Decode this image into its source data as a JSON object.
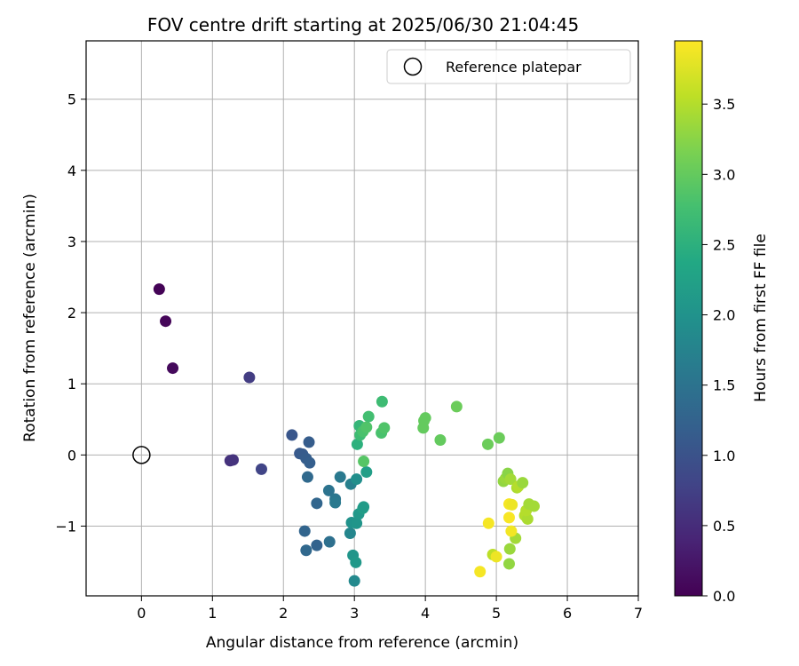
{
  "chart_data": {
    "type": "scatter",
    "title": "FOV centre drift starting at 2025/06/30 21:04:45",
    "xlabel": "Angular distance from reference (arcmin)",
    "ylabel": "Rotation from reference (arcmin)",
    "xlim": [
      -0.78,
      7.0
    ],
    "ylim": [
      -1.98,
      5.82
    ],
    "x_ticks": [
      0,
      1,
      2,
      3,
      4,
      5,
      6,
      7
    ],
    "y_ticks": [
      -1,
      0,
      1,
      2,
      3,
      4,
      5
    ],
    "x_tick_labels": [
      "0",
      "1",
      "2",
      "3",
      "4",
      "5",
      "6",
      "7"
    ],
    "y_tick_labels": [
      "−1",
      "0",
      "1",
      "2",
      "3",
      "4",
      "5"
    ],
    "grid": true,
    "legend_placement": "top-right",
    "legend_entries": [
      "Reference platepar"
    ],
    "reference_point": {
      "x": 0,
      "y": 0
    },
    "colorbar": {
      "label": "Hours from first FF file",
      "colormap": "viridis",
      "range": [
        0.0,
        3.95
      ],
      "ticks": [
        0.0,
        0.5,
        1.0,
        1.5,
        2.0,
        2.5,
        3.0,
        3.5
      ],
      "tick_labels": [
        "0.0",
        "0.5",
        "1.0",
        "1.5",
        "2.0",
        "2.5",
        "3.0",
        "3.5"
      ]
    },
    "points": [
      {
        "x": 0.25,
        "y": 2.33,
        "c": 0.02
      },
      {
        "x": 0.34,
        "y": 1.88,
        "c": 0.06
      },
      {
        "x": 0.44,
        "y": 1.22,
        "c": 0.1
      },
      {
        "x": 1.25,
        "y": -0.08,
        "c": 0.55
      },
      {
        "x": 1.29,
        "y": -0.07,
        "c": 0.58
      },
      {
        "x": 1.52,
        "y": 1.09,
        "c": 0.7
      },
      {
        "x": 1.69,
        "y": -0.2,
        "c": 0.8
      },
      {
        "x": 2.12,
        "y": 0.28,
        "c": 1.05
      },
      {
        "x": 2.23,
        "y": 0.02,
        "c": 1.1
      },
      {
        "x": 2.27,
        "y": 0.01,
        "c": 1.12
      },
      {
        "x": 2.32,
        "y": -0.05,
        "c": 1.15
      },
      {
        "x": 2.36,
        "y": 0.18,
        "c": 1.15
      },
      {
        "x": 2.37,
        "y": -0.11,
        "c": 1.18
      },
      {
        "x": 2.34,
        "y": -0.31,
        "c": 1.35
      },
      {
        "x": 2.47,
        "y": -0.68,
        "c": 1.3
      },
      {
        "x": 2.3,
        "y": -1.07,
        "c": 1.28
      },
      {
        "x": 2.32,
        "y": -1.34,
        "c": 1.32
      },
      {
        "x": 2.47,
        "y": -1.27,
        "c": 1.25
      },
      {
        "x": 2.65,
        "y": -1.22,
        "c": 1.45
      },
      {
        "x": 2.64,
        "y": -0.5,
        "c": 1.5
      },
      {
        "x": 2.73,
        "y": -0.62,
        "c": 1.55
      },
      {
        "x": 2.73,
        "y": -0.67,
        "c": 1.6
      },
      {
        "x": 2.8,
        "y": -0.31,
        "c": 1.6
      },
      {
        "x": 2.95,
        "y": -0.41,
        "c": 1.7
      },
      {
        "x": 3.03,
        "y": -0.34,
        "c": 1.95
      },
      {
        "x": 2.94,
        "y": -1.1,
        "c": 1.8
      },
      {
        "x": 2.96,
        "y": -0.95,
        "c": 2.0
      },
      {
        "x": 3.03,
        "y": -0.96,
        "c": 2.05
      },
      {
        "x": 3.06,
        "y": -0.83,
        "c": 2.1
      },
      {
        "x": 3.12,
        "y": -0.75,
        "c": 2.2
      },
      {
        "x": 3.13,
        "y": -0.73,
        "c": 2.15
      },
      {
        "x": 3.17,
        "y": -0.24,
        "c": 2.2
      },
      {
        "x": 2.98,
        "y": -1.41,
        "c": 2.05
      },
      {
        "x": 3.02,
        "y": -1.51,
        "c": 2.1
      },
      {
        "x": 3.0,
        "y": -1.77,
        "c": 1.85
      },
      {
        "x": 3.04,
        "y": 0.15,
        "c": 2.5
      },
      {
        "x": 3.07,
        "y": 0.41,
        "c": 2.6
      },
      {
        "x": 3.08,
        "y": 0.28,
        "c": 2.7
      },
      {
        "x": 3.12,
        "y": 0.33,
        "c": 2.8
      },
      {
        "x": 3.17,
        "y": 0.39,
        "c": 2.85
      },
      {
        "x": 3.2,
        "y": 0.54,
        "c": 2.75
      },
      {
        "x": 3.13,
        "y": -0.09,
        "c": 2.9
      },
      {
        "x": 3.38,
        "y": 0.31,
        "c": 2.8
      },
      {
        "x": 3.42,
        "y": 0.38,
        "c": 2.85
      },
      {
        "x": 3.39,
        "y": 0.75,
        "c": 2.7
      },
      {
        "x": 3.97,
        "y": 0.38,
        "c": 3.0
      },
      {
        "x": 3.98,
        "y": 0.48,
        "c": 3.0
      },
      {
        "x": 4.0,
        "y": 0.52,
        "c": 3.0
      },
      {
        "x": 4.21,
        "y": 0.21,
        "c": 3.0
      },
      {
        "x": 4.44,
        "y": 0.68,
        "c": 3.05
      },
      {
        "x": 4.88,
        "y": 0.15,
        "c": 3.05
      },
      {
        "x": 5.04,
        "y": 0.24,
        "c": 3.05
      },
      {
        "x": 5.1,
        "y": -0.37,
        "c": 3.3
      },
      {
        "x": 5.13,
        "y": -0.33,
        "c": 3.35
      },
      {
        "x": 5.16,
        "y": -0.26,
        "c": 3.25
      },
      {
        "x": 5.2,
        "y": -0.34,
        "c": 3.4
      },
      {
        "x": 5.29,
        "y": -0.46,
        "c": 3.45
      },
      {
        "x": 5.31,
        "y": -0.44,
        "c": 3.5
      },
      {
        "x": 5.37,
        "y": -0.39,
        "c": 3.35
      },
      {
        "x": 5.4,
        "y": -0.85,
        "c": 3.5
      },
      {
        "x": 5.44,
        "y": -0.9,
        "c": 3.45
      },
      {
        "x": 5.42,
        "y": -0.78,
        "c": 3.5
      },
      {
        "x": 5.46,
        "y": -0.69,
        "c": 3.4
      },
      {
        "x": 5.53,
        "y": -0.72,
        "c": 3.4
      },
      {
        "x": 5.27,
        "y": -1.17,
        "c": 3.4
      },
      {
        "x": 5.19,
        "y": -1.32,
        "c": 3.35
      },
      {
        "x": 5.18,
        "y": -1.53,
        "c": 3.3
      },
      {
        "x": 4.95,
        "y": -1.4,
        "c": 3.55
      },
      {
        "x": 5.0,
        "y": -1.43,
        "c": 3.85
      },
      {
        "x": 4.77,
        "y": -1.64,
        "c": 3.9
      },
      {
        "x": 4.89,
        "y": -0.96,
        "c": 3.9
      },
      {
        "x": 5.18,
        "y": -0.69,
        "c": 3.9
      },
      {
        "x": 5.22,
        "y": -0.7,
        "c": 3.85
      },
      {
        "x": 5.18,
        "y": -0.88,
        "c": 3.92
      },
      {
        "x": 5.21,
        "y": -1.07,
        "c": 3.88
      }
    ]
  }
}
